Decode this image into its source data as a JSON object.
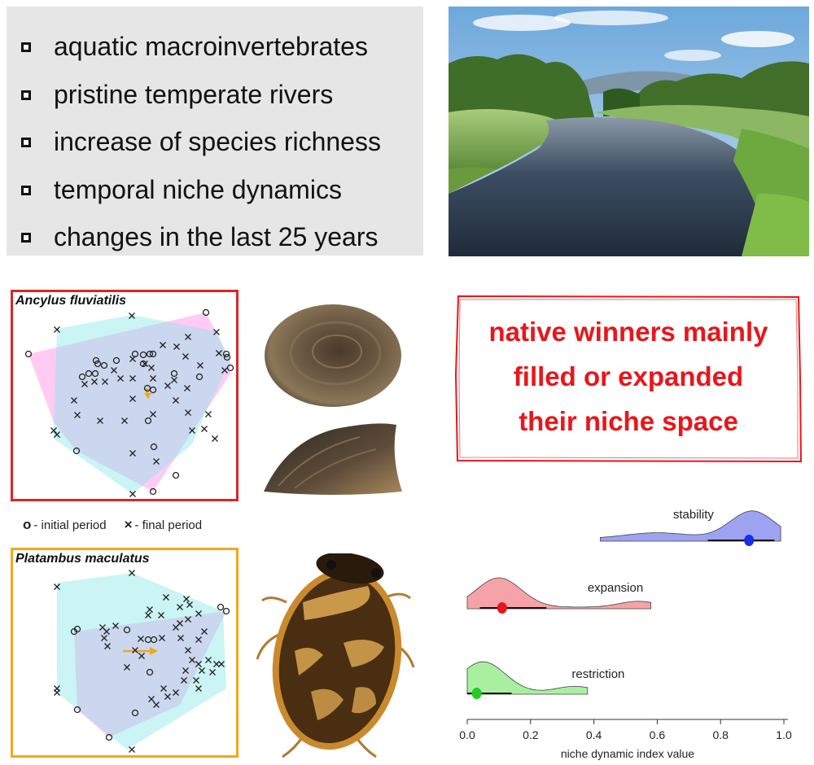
{
  "keywords": [
    "aquatic macroinvertebrates",
    "pristine temperate rivers",
    "increase of species richness",
    "temporal niche dynamics",
    "changes in the last 25 years"
  ],
  "species": [
    {
      "name": "Ancylus fluviatilis",
      "frame_color": "#d9262a"
    },
    {
      "name": "Platambus maculatus",
      "frame_color": "#f0a81c"
    }
  ],
  "legend": {
    "initial_marker": "o",
    "initial_label": "- initial period",
    "final_marker": "×",
    "final_label": "- final period"
  },
  "conclusion": {
    "lines": [
      "native winners mainly",
      "filled or expanded",
      "their niche space"
    ],
    "color": "#e8161b"
  },
  "colors": {
    "initial_hull": "#ff8ce6",
    "final_hull": "#8ce6e6",
    "arrow": "#f0a81c",
    "stability": "#9da3f0",
    "expansion": "#f5a3a8",
    "restriction": "#a8f0a0"
  },
  "chart_data": {
    "type": "area",
    "xlabel": "niche dynamic index value",
    "xlim": [
      0,
      1
    ],
    "ticks": [
      "0.0",
      "0.2",
      "0.4",
      "0.6",
      "0.8",
      "1.0"
    ],
    "series": [
      {
        "name": "stability",
        "range": [
          0.42,
          0.99
        ],
        "median": 0.89,
        "interval": [
          0.76,
          0.97
        ],
        "color": "#9da3f0",
        "point_color": "#1a2ee6"
      },
      {
        "name": "expansion",
        "range": [
          0.0,
          0.58
        ],
        "median": 0.11,
        "interval": [
          0.04,
          0.25
        ],
        "color": "#f5a3a8",
        "point_color": "#e8161b"
      },
      {
        "name": "restriction",
        "range": [
          0.0,
          0.38
        ],
        "median": 0.03,
        "interval": [
          0.0,
          0.14
        ],
        "color": "#a8f0a0",
        "point_color": "#22cc22"
      }
    ]
  }
}
